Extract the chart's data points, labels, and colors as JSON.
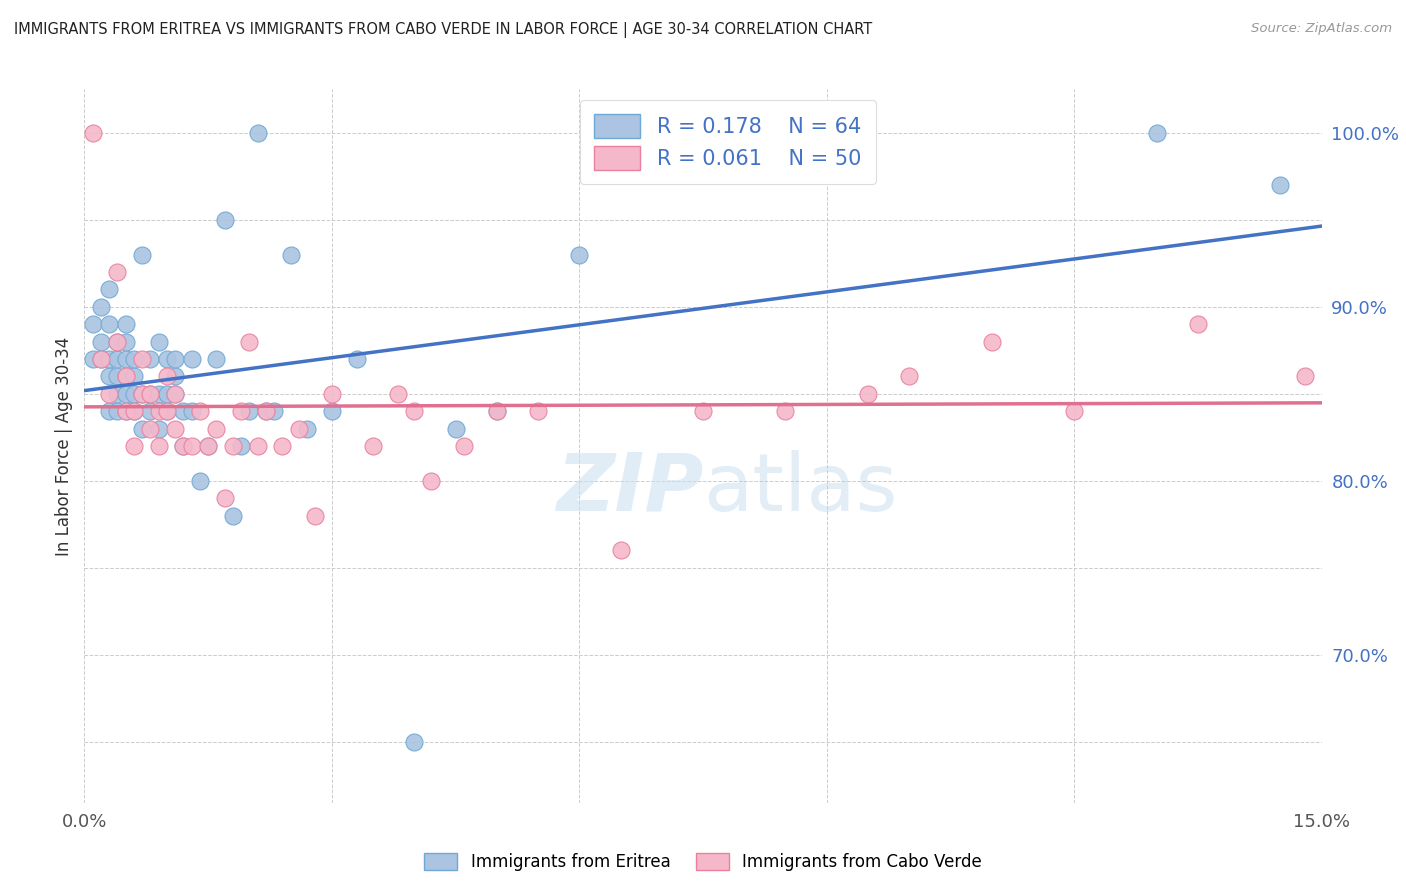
{
  "title": "IMMIGRANTS FROM ERITREA VS IMMIGRANTS FROM CABO VERDE IN LABOR FORCE | AGE 30-34 CORRELATION CHART",
  "source": "Source: ZipAtlas.com",
  "ylabel": "In Labor Force | Age 30-34",
  "xlim": [
    0.0,
    0.15
  ],
  "ylim": [
    0.615,
    1.025
  ],
  "legend_eritrea_R": "0.178",
  "legend_eritrea_N": "64",
  "legend_caboverde_R": "0.061",
  "legend_caboverde_N": "50",
  "color_eritrea": "#aac4e2",
  "color_eritrea_edge": "#6fa8d4",
  "color_caboverde": "#f5b8ca",
  "color_caboverde_edge": "#e8809e",
  "color_eritrea_line": "#4472c4",
  "color_caboverde_line": "#e07090",
  "watermark_color": "#ddeef8",
  "ytick_color": "#4472c4",
  "xtick_label_left": "0.0%",
  "xtick_label_right": "15.0%",
  "eritrea_x": [
    0.001,
    0.001,
    0.002,
    0.002,
    0.002,
    0.003,
    0.003,
    0.003,
    0.003,
    0.003,
    0.004,
    0.004,
    0.004,
    0.004,
    0.004,
    0.005,
    0.005,
    0.005,
    0.005,
    0.005,
    0.005,
    0.006,
    0.006,
    0.006,
    0.006,
    0.007,
    0.007,
    0.007,
    0.008,
    0.008,
    0.008,
    0.009,
    0.009,
    0.009,
    0.01,
    0.01,
    0.01,
    0.011,
    0.011,
    0.011,
    0.012,
    0.012,
    0.013,
    0.013,
    0.014,
    0.015,
    0.016,
    0.017,
    0.018,
    0.019,
    0.02,
    0.021,
    0.022,
    0.023,
    0.025,
    0.027,
    0.03,
    0.033,
    0.04,
    0.045,
    0.05,
    0.06,
    0.13,
    0.145
  ],
  "eritrea_y": [
    0.87,
    0.89,
    0.87,
    0.88,
    0.9,
    0.84,
    0.86,
    0.87,
    0.89,
    0.91,
    0.84,
    0.85,
    0.86,
    0.87,
    0.88,
    0.84,
    0.85,
    0.86,
    0.87,
    0.88,
    0.89,
    0.84,
    0.85,
    0.86,
    0.87,
    0.83,
    0.85,
    0.93,
    0.84,
    0.85,
    0.87,
    0.83,
    0.85,
    0.88,
    0.84,
    0.85,
    0.87,
    0.85,
    0.86,
    0.87,
    0.82,
    0.84,
    0.84,
    0.87,
    0.8,
    0.82,
    0.87,
    0.95,
    0.78,
    0.82,
    0.84,
    1.0,
    0.84,
    0.84,
    0.93,
    0.83,
    0.84,
    0.87,
    0.65,
    0.83,
    0.84,
    0.93,
    1.0,
    0.97
  ],
  "caboverde_x": [
    0.001,
    0.002,
    0.003,
    0.004,
    0.004,
    0.005,
    0.005,
    0.006,
    0.006,
    0.007,
    0.007,
    0.008,
    0.008,
    0.009,
    0.009,
    0.01,
    0.01,
    0.011,
    0.011,
    0.012,
    0.013,
    0.014,
    0.015,
    0.016,
    0.017,
    0.018,
    0.019,
    0.02,
    0.021,
    0.022,
    0.024,
    0.026,
    0.028,
    0.03,
    0.035,
    0.038,
    0.04,
    0.042,
    0.046,
    0.05,
    0.055,
    0.065,
    0.075,
    0.085,
    0.095,
    0.1,
    0.11,
    0.12,
    0.135,
    0.148
  ],
  "caboverde_y": [
    1.0,
    0.87,
    0.85,
    0.88,
    0.92,
    0.84,
    0.86,
    0.82,
    0.84,
    0.85,
    0.87,
    0.83,
    0.85,
    0.82,
    0.84,
    0.84,
    0.86,
    0.83,
    0.85,
    0.82,
    0.82,
    0.84,
    0.82,
    0.83,
    0.79,
    0.82,
    0.84,
    0.88,
    0.82,
    0.84,
    0.82,
    0.83,
    0.78,
    0.85,
    0.82,
    0.85,
    0.84,
    0.8,
    0.82,
    0.84,
    0.84,
    0.76,
    0.84,
    0.84,
    0.85,
    0.86,
    0.88,
    0.84,
    0.89,
    0.86
  ]
}
